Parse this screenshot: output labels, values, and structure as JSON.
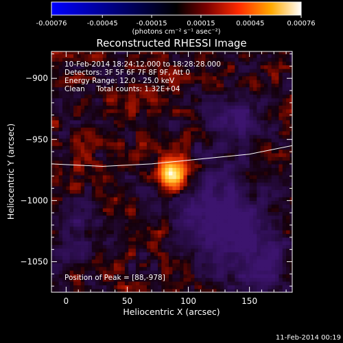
{
  "chart_data": {
    "type": "heatmap",
    "title": "Reconstructed RHESSI Image",
    "xlabel": "Heliocentric X (arcsec)",
    "ylabel": "Heliocentric Y (arcsec)",
    "xlim": [
      -12,
      185
    ],
    "ylim": [
      -1075,
      -878
    ],
    "x_ticks": [
      0,
      50,
      100,
      150
    ],
    "y_ticks": [
      -900,
      -950,
      -1000,
      -1050
    ],
    "colorbar": {
      "range": [
        -0.00076,
        0.00076
      ],
      "ticks": [
        "-0.00076",
        "-0.00045",
        "-0.00015",
        "0.00015",
        "0.00045",
        "0.00076"
      ],
      "unit_label": "(photons cm⁻² s⁻¹ asec⁻²)"
    },
    "info_lines": [
      "10-Feb-2014 18:24:12.000 to 18:28:28.000",
      "Detectors: 3F 5F 6F 7F 8F 9F, Att 0",
      "Energy Range: 12.0 - 25.0 keV",
      "Clean     Total counts: 1.32E+04"
    ],
    "peak_label": "Position of Peak = [88,-978]",
    "peak": [
      88,
      -978
    ],
    "limb": {
      "x": [
        -12,
        30,
        70,
        110,
        150,
        185
      ],
      "y": [
        -970,
        -972,
        -970,
        -966,
        -962,
        -955
      ]
    }
  },
  "footer_date": "11-Feb-2014 00:19"
}
